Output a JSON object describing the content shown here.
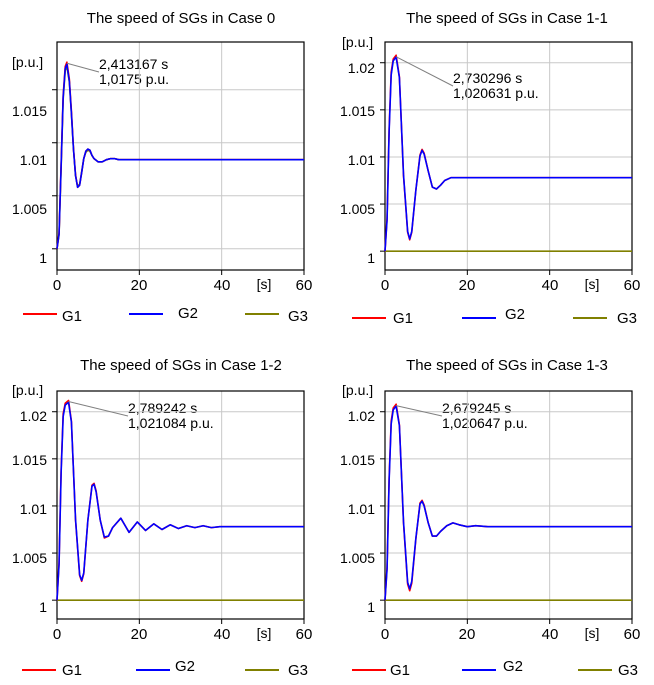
{
  "colors": {
    "G1": "#ff0000",
    "G2": "#0000ff",
    "G3": "#808000",
    "grid": "#c8c8c8",
    "leader": "#808080"
  },
  "chart_data": [
    {
      "type": "line",
      "title": "The speed of SGs in Case 0",
      "ylabel": "[p.u.]",
      "xlabel": "[s]",
      "xlim": [
        0,
        60
      ],
      "ylim": [
        0.998,
        1.0195
      ],
      "xticks": [
        "0",
        "20",
        "40",
        "60"
      ],
      "yticks": [
        "1",
        "1.005",
        "1.01",
        "1.015"
      ],
      "grid": true,
      "legend": {
        "position": "bottom",
        "entries": [
          "G1",
          "G2",
          "G3"
        ]
      },
      "annotation": {
        "x": 2.413167,
        "y": 1.0175,
        "line1": "2,413167 s",
        "line2": "1,0175 p.u."
      },
      "series": [
        {
          "name": "G1",
          "color": "#ff0000",
          "x": [
            0,
            0.5,
            1,
            1.5,
            2,
            2.4,
            3,
            3.5,
            4,
            4.5,
            5,
            5.5,
            6,
            6.5,
            7,
            7.5,
            8,
            8.5,
            9,
            10,
            11,
            12,
            13,
            14,
            15,
            16,
            20,
            30,
            40,
            50,
            60
          ],
          "y": [
            1.0,
            1.0015,
            1.008,
            1.0145,
            1.0172,
            1.0176,
            1.016,
            1.013,
            1.0095,
            1.007,
            1.0058,
            1.006,
            1.0072,
            1.0085,
            1.0092,
            1.0094,
            1.0093,
            1.0088,
            1.0085,
            1.0082,
            1.0082,
            1.0084,
            1.0085,
            1.0085,
            1.0084,
            1.0084,
            1.0084,
            1.0084,
            1.0084,
            1.0084,
            1.0084
          ]
        },
        {
          "name": "G2",
          "color": "#0000ff",
          "x": [
            0,
            0.5,
            1,
            1.5,
            2,
            2.4,
            3,
            3.5,
            4,
            4.5,
            5,
            5.5,
            6,
            6.5,
            7,
            7.5,
            8,
            8.5,
            9,
            10,
            11,
            12,
            13,
            14,
            15,
            16,
            20,
            30,
            40,
            50,
            60
          ],
          "y": [
            1.0,
            1.0014,
            1.0078,
            1.0143,
            1.017,
            1.0174,
            1.0158,
            1.0128,
            1.0094,
            1.0069,
            1.0058,
            1.006,
            1.0072,
            1.0085,
            1.0092,
            1.0094,
            1.0093,
            1.0088,
            1.0085,
            1.0082,
            1.0082,
            1.0084,
            1.0085,
            1.0085,
            1.0084,
            1.0084,
            1.0084,
            1.0084,
            1.0084,
            1.0084,
            1.0084
          ]
        },
        {
          "name": "G3",
          "color": "#808000",
          "x": [
            0,
            0.5,
            1,
            1.5,
            2,
            2.4,
            3,
            3.5,
            4,
            4.5,
            5,
            5.5,
            6,
            6.5,
            7,
            7.5,
            8,
            8.5,
            9,
            10,
            11,
            12,
            13,
            14,
            15,
            16,
            20,
            30,
            40,
            50,
            60
          ],
          "y": [
            1.0,
            1.0013,
            1.0076,
            1.0141,
            1.0168,
            1.0172,
            1.0157,
            1.0127,
            1.0094,
            1.0069,
            1.0059,
            1.0061,
            1.0073,
            1.0085,
            1.0091,
            1.0093,
            1.0092,
            1.0088,
            1.0085,
            1.0082,
            1.0082,
            1.0084,
            1.0085,
            1.0085,
            1.0084,
            1.0084,
            1.0084,
            1.0084,
            1.0084,
            1.0084,
            1.0084
          ]
        }
      ]
    },
    {
      "type": "line",
      "title": "The speed of SGs in Case 1-1",
      "ylabel": "[p.u.]",
      "xlabel": "[s]",
      "xlim": [
        0,
        60
      ],
      "ylim": [
        0.998,
        1.0222
      ],
      "xticks": [
        "0",
        "20",
        "40",
        "60"
      ],
      "yticks": [
        "1",
        "1.005",
        "1.01",
        "1.015",
        "1.02"
      ],
      "grid": true,
      "legend": {
        "position": "bottom",
        "entries": [
          "G1",
          "G2",
          "G3"
        ]
      },
      "annotation": {
        "x": 2.730296,
        "y": 1.020631,
        "line1": "2,730296 s",
        "line2": "1,020631 p.u."
      },
      "series": [
        {
          "name": "G1",
          "color": "#ff0000",
          "x": [
            0,
            0.5,
            1,
            1.5,
            2,
            2.7,
            3.5,
            4.5,
            5.5,
            6,
            6.5,
            7.5,
            8.5,
            9,
            9.5,
            10.5,
            11.5,
            12.5,
            13.5,
            14.5,
            16,
            18,
            20,
            30,
            40,
            50,
            60
          ],
          "y": [
            1.0,
            1.0035,
            1.013,
            1.019,
            1.0204,
            1.0208,
            1.0185,
            1.008,
            1.002,
            1.0012,
            1.002,
            1.0065,
            1.0102,
            1.0108,
            1.0104,
            1.0085,
            1.0068,
            1.0066,
            1.007,
            1.0075,
            1.0078,
            1.0078,
            1.0078,
            1.0078,
            1.0078,
            1.0078,
            1.0078
          ]
        },
        {
          "name": "G2",
          "color": "#0000ff",
          "x": [
            0,
            0.5,
            1,
            1.5,
            2,
            2.7,
            3.5,
            4.5,
            5.5,
            6,
            6.5,
            7.5,
            8.5,
            9,
            9.5,
            10.5,
            11.5,
            12.5,
            13.5,
            14.5,
            16,
            18,
            20,
            30,
            40,
            50,
            60
          ],
          "y": [
            1.0,
            1.0033,
            1.0127,
            1.0187,
            1.0202,
            1.0206,
            1.0184,
            1.0081,
            1.0021,
            1.0013,
            1.0021,
            1.0065,
            1.0101,
            1.0107,
            1.0103,
            1.0085,
            1.0068,
            1.0066,
            1.007,
            1.0075,
            1.0078,
            1.0078,
            1.0078,
            1.0078,
            1.0078,
            1.0078,
            1.0078
          ]
        },
        {
          "name": "G3",
          "color": "#808000",
          "x": [
            0,
            60
          ],
          "y": [
            1.0,
            1.0
          ]
        }
      ]
    },
    {
      "type": "line",
      "title": "The speed of SGs in Case 1-2",
      "ylabel": "[p.u.]",
      "xlabel": "[s]",
      "xlim": [
        0,
        60
      ],
      "ylim": [
        0.998,
        1.0222
      ],
      "xticks": [
        "0",
        "20",
        "40",
        "60"
      ],
      "yticks": [
        "1",
        "1.005",
        "1.01",
        "1.015",
        "1.02"
      ],
      "grid": true,
      "legend": {
        "position": "bottom",
        "entries": [
          "G1",
          "G2",
          "G3"
        ]
      },
      "annotation": {
        "x": 2.789242,
        "y": 1.021084,
        "line1": "2,789242 s",
        "line2": "1,021084 p.u."
      },
      "series": [
        {
          "name": "G1",
          "color": "#ff0000",
          "x": [
            0,
            0.5,
            1,
            1.5,
            2,
            2.8,
            3.5,
            4.5,
            5.5,
            6,
            6.5,
            7.5,
            8.5,
            9,
            9.5,
            10.5,
            11.5,
            12.5,
            13.5,
            15.5,
            17.5,
            19.5,
            21.5,
            23.5,
            25.5,
            27.5,
            29.5,
            31.5,
            33.5,
            35.5,
            37.5,
            39.5,
            42,
            45,
            50,
            55,
            60
          ],
          "y": [
            1.0,
            1.004,
            1.0138,
            1.0198,
            1.0209,
            1.0212,
            1.019,
            1.0085,
            1.0026,
            1.002,
            1.0028,
            1.0085,
            1.0122,
            1.0124,
            1.0116,
            1.0085,
            1.0066,
            1.0068,
            1.0077,
            1.0087,
            1.0072,
            1.0083,
            1.0074,
            1.0081,
            1.0075,
            1.008,
            1.0076,
            1.0079,
            1.0077,
            1.0079,
            1.0077,
            1.0078,
            1.0078,
            1.0078,
            1.0078,
            1.0078,
            1.0078
          ]
        },
        {
          "name": "G2",
          "color": "#0000ff",
          "x": [
            0,
            0.5,
            1,
            1.5,
            2,
            2.8,
            3.5,
            4.5,
            5.5,
            6,
            6.5,
            7.5,
            8.5,
            9,
            9.5,
            10.5,
            11.5,
            12.5,
            13.5,
            15.5,
            17.5,
            19.5,
            21.5,
            23.5,
            25.5,
            27.5,
            29.5,
            31.5,
            33.5,
            35.5,
            37.5,
            39.5,
            42,
            45,
            50,
            55,
            60
          ],
          "y": [
            1.0,
            1.0038,
            1.0135,
            1.0195,
            1.0207,
            1.021,
            1.0189,
            1.0086,
            1.0027,
            1.0021,
            1.0029,
            1.0085,
            1.0121,
            1.0123,
            1.0115,
            1.0085,
            1.0067,
            1.0068,
            1.0077,
            1.0087,
            1.0072,
            1.0083,
            1.0074,
            1.0081,
            1.0075,
            1.008,
            1.0076,
            1.0079,
            1.0077,
            1.0079,
            1.0077,
            1.0078,
            1.0078,
            1.0078,
            1.0078,
            1.0078,
            1.0078
          ]
        },
        {
          "name": "G3",
          "color": "#808000",
          "x": [
            0,
            60
          ],
          "y": [
            1.0,
            1.0
          ]
        }
      ]
    },
    {
      "type": "line",
      "title": "The speed of SGs in Case 1-3",
      "ylabel": "[p.u.]",
      "xlabel": "[s]",
      "xlim": [
        0,
        60
      ],
      "ylim": [
        0.998,
        1.0222
      ],
      "xticks": [
        "0",
        "20",
        "40",
        "60"
      ],
      "yticks": [
        "1",
        "1.005",
        "1.01",
        "1.015",
        "1.02"
      ],
      "grid": true,
      "legend": {
        "position": "bottom",
        "entries": [
          "G1",
          "G2",
          "G3"
        ]
      },
      "annotation": {
        "x": 2.679245,
        "y": 1.020647,
        "line1": "2,679245 s",
        "line2": "1,020647 p.u."
      },
      "series": [
        {
          "name": "G1",
          "color": "#ff0000",
          "x": [
            0,
            0.5,
            1,
            1.5,
            2,
            2.7,
            3.5,
            4.5,
            5.5,
            6,
            6.5,
            7.5,
            8.5,
            9,
            9.5,
            10.5,
            11.5,
            12.5,
            13.5,
            15,
            16.5,
            18,
            20,
            22,
            25,
            30,
            40,
            50,
            60
          ],
          "y": [
            1.0,
            1.0035,
            1.013,
            1.019,
            1.0204,
            1.0208,
            1.0186,
            1.0082,
            1.0017,
            1.001,
            1.0018,
            1.0065,
            1.0103,
            1.0106,
            1.0101,
            1.0082,
            1.0068,
            1.0068,
            1.0073,
            1.0079,
            1.0082,
            1.008,
            1.0078,
            1.0079,
            1.0078,
            1.0078,
            1.0078,
            1.0078,
            1.0078
          ]
        },
        {
          "name": "G2",
          "color": "#0000ff",
          "x": [
            0,
            0.5,
            1,
            1.5,
            2,
            2.7,
            3.5,
            4.5,
            5.5,
            6,
            6.5,
            7.5,
            8.5,
            9,
            9.5,
            10.5,
            11.5,
            12.5,
            13.5,
            15,
            16.5,
            18,
            20,
            22,
            25,
            30,
            40,
            50,
            60
          ],
          "y": [
            1.0,
            1.0033,
            1.0127,
            1.0187,
            1.0202,
            1.0206,
            1.0185,
            1.0083,
            1.0019,
            1.0012,
            1.002,
            1.0066,
            1.0102,
            1.0105,
            1.01,
            1.0082,
            1.0068,
            1.0068,
            1.0073,
            1.0079,
            1.0082,
            1.008,
            1.0078,
            1.0079,
            1.0078,
            1.0078,
            1.0078,
            1.0078,
            1.0078
          ]
        },
        {
          "name": "G3",
          "color": "#808000",
          "x": [
            0,
            60
          ],
          "y": [
            1.0,
            1.0
          ]
        }
      ]
    }
  ]
}
